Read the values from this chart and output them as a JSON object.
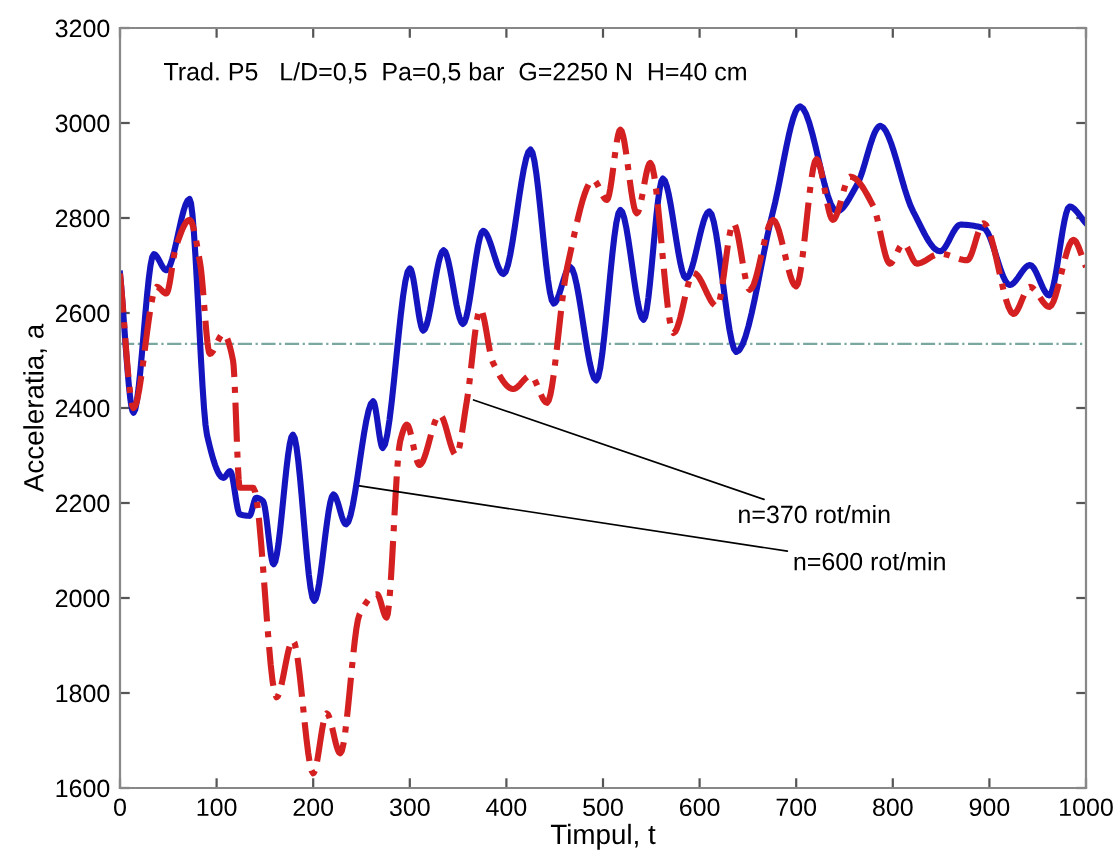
{
  "chart_data": {
    "type": "line",
    "title": "Trad. P5   L/D=0,5  Pa=0,5 bar  G=2250 N  H=40 cm",
    "xlabel": "Timpul, t",
    "ylabel": "Acceleratia, a",
    "xlim": [
      0,
      1000
    ],
    "xticks": [
      0,
      100,
      200,
      300,
      400,
      500,
      600,
      700,
      800,
      900,
      1000
    ],
    "ylim": [
      1600,
      3200
    ],
    "yticks": [
      1600,
      1800,
      2000,
      2200,
      2400,
      2600,
      2800,
      3000,
      3200
    ],
    "grid": false,
    "legend": false,
    "series": [
      {
        "color": "#1515c0",
        "line_style": "solid",
        "x": [
          0,
          14,
          35,
          48,
          72,
          90,
          107,
          114,
          124,
          134,
          141,
          148,
          159,
          179,
          201,
          221,
          234,
          262,
          272,
          300,
          314,
          335,
          355,
          376,
          397,
          425,
          449,
          466,
          493,
          518,
          542,
          562,
          586,
          610,
          638,
          676,
          704,
          742,
          763,
          787,
          821,
          849,
          870,
          894,
          921,
          942,
          962,
          983,
          1000
        ],
        "values": [
          2683,
          2390,
          2724,
          2690,
          2840,
          2344,
          2253,
          2267,
          2176,
          2173,
          2211,
          2204,
          2071,
          2344,
          1994,
          2218,
          2155,
          2414,
          2316,
          2694,
          2563,
          2732,
          2577,
          2773,
          2682,
          2944,
          2620,
          2697,
          2458,
          2817,
          2586,
          2883,
          2673,
          2814,
          2518,
          2814,
          3035,
          2814,
          2870,
          2994,
          2814,
          2730,
          2786,
          2779,
          2659,
          2701,
          2637,
          2824,
          2789
        ]
      },
      {
        "color": "#d42020",
        "line_style": "dashdot",
        "x": [
          0,
          14,
          38,
          48,
          58,
          72,
          83,
          93,
          107,
          117,
          124,
          138,
          162,
          179,
          200,
          214,
          228,
          248,
          266,
          276,
          290,
          297,
          310,
          331,
          348,
          359,
          373,
          386,
          407,
          425,
          442,
          463,
          490,
          504,
          518,
          535,
          549,
          573,
          594,
          618,
          635,
          652,
          676,
          700,
          721,
          738,
          756,
          780,
          797,
          811,
          825,
          849,
          877,
          894,
          925,
          942,
          962,
          987,
          1000
        ],
        "values": [
          2683,
          2400,
          2655,
          2641,
          2740,
          2796,
          2704,
          2514,
          2556,
          2500,
          2232,
          2232,
          1791,
          1911,
          1631,
          1757,
          1673,
          1966,
          2008,
          1959,
          2330,
          2365,
          2280,
          2386,
          2301,
          2414,
          2608,
          2496,
          2440,
          2468,
          2411,
          2697,
          2880,
          2838,
          2986,
          2810,
          2916,
          2558,
          2684,
          2614,
          2789,
          2649,
          2796,
          2656,
          2924,
          2796,
          2887,
          2824,
          2704,
          2746,
          2704,
          2725,
          2711,
          2789,
          2598,
          2655,
          2613,
          2754,
          2697
        ]
      }
    ],
    "ref_lines": [
      {
        "axis": "y",
        "value": 2535,
        "color": "#7aa8a0",
        "line_style": "dashdot"
      }
    ],
    "annotations": [
      {
        "text": "n=370 rot/min",
        "x": 366,
        "y": 2417
      },
      {
        "text": "n=600 rot/min",
        "x": 248,
        "y": 2236
      }
    ]
  }
}
